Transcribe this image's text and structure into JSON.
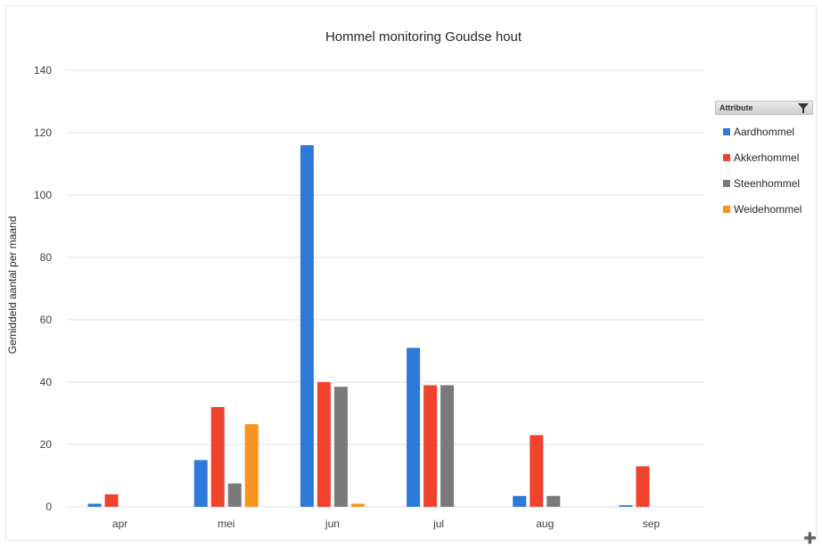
{
  "chart_data": {
    "type": "bar",
    "title": "Hommel monitoring Goudse hout",
    "xlabel": "",
    "ylabel": "Gemiddeld aantal per maand",
    "categories": [
      "apr",
      "mei",
      "jun",
      "jul",
      "aug",
      "sep"
    ],
    "ylim": [
      0,
      140
    ],
    "yticks": [
      0,
      20,
      40,
      60,
      80,
      100,
      120,
      140
    ],
    "grid": true,
    "legend_position": "right",
    "legend_title": "Attribute",
    "series": [
      {
        "name": "Aardhommel",
        "color": "#2e7ad8",
        "values": [
          1,
          15,
          116,
          51,
          3.5,
          0.5
        ]
      },
      {
        "name": "Akkerhommel",
        "color": "#f0432d",
        "values": [
          4,
          32,
          40,
          39,
          23,
          13
        ]
      },
      {
        "name": "Steenhommel",
        "color": "#7a7a7a",
        "values": [
          0,
          7.5,
          38.5,
          39,
          3.5,
          0
        ]
      },
      {
        "name": "Weidehommel",
        "color": "#f7941d",
        "values": [
          0,
          26.5,
          1,
          0,
          0,
          0
        ]
      }
    ]
  }
}
